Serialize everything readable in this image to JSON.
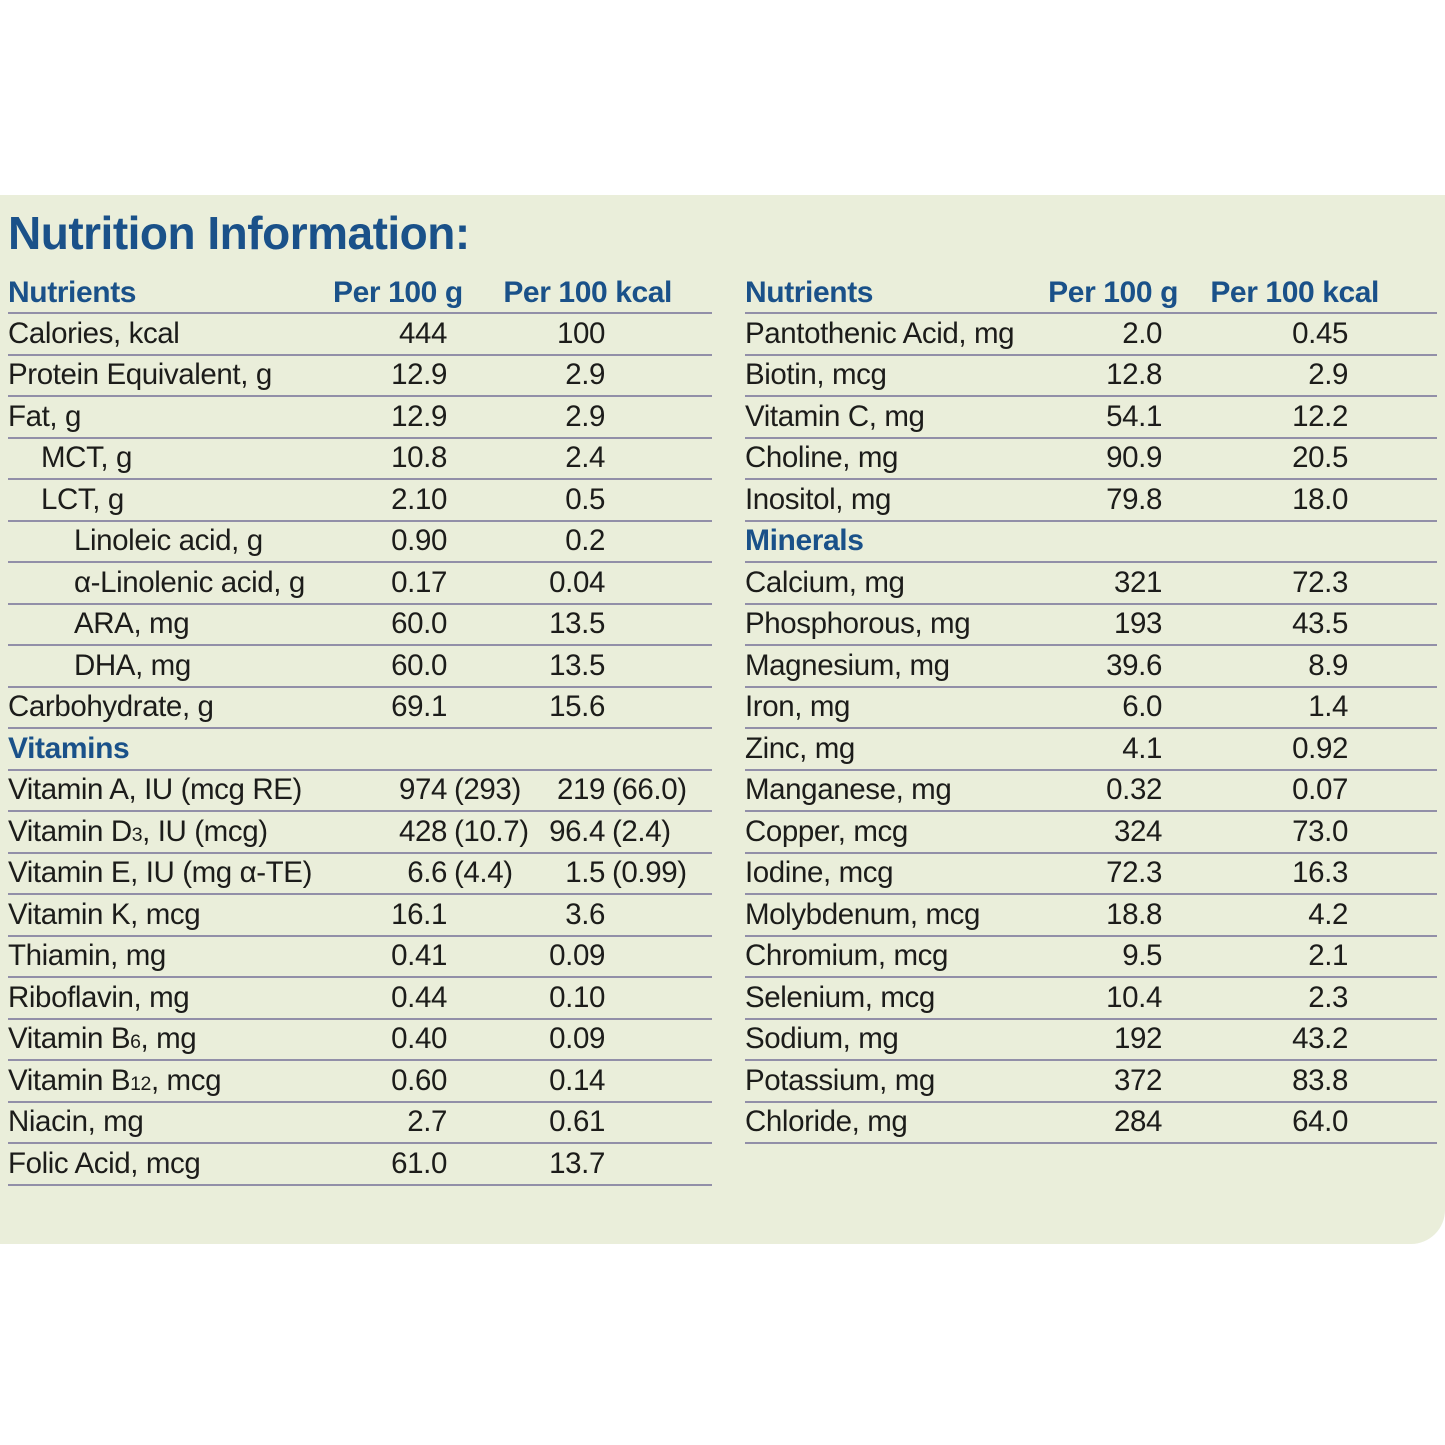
{
  "title": "Nutrition Information:",
  "columns": {
    "nutrients": "Nutrients",
    "per100g": "Per 100 g",
    "per100kcal": "Per 100 kcal"
  },
  "colors": {
    "panel_background": "#eaeeda",
    "heading_blue": "#1a5189",
    "body_text": "#1c1c1a",
    "row_rule": "#928fa8"
  },
  "left_table": {
    "rows": [
      {
        "label": "Calories, kcal",
        "g": "444",
        "kcal": "100"
      },
      {
        "label": "Protein Equivalent, g",
        "g": "12.9",
        "kcal": "2.9"
      },
      {
        "label": "Fat, g",
        "g": "12.9",
        "kcal": "2.9"
      },
      {
        "label": "MCT, g",
        "indent": 1,
        "g": "10.8",
        "kcal": "2.4"
      },
      {
        "label": "LCT, g",
        "indent": 1,
        "g": "2.10",
        "kcal": "0.5"
      },
      {
        "label": "Linoleic acid, g",
        "indent": 2,
        "g": "0.90",
        "kcal": "0.2"
      },
      {
        "label": "α-Linolenic acid, g",
        "indent": 2,
        "g": "0.17",
        "kcal": "0.04"
      },
      {
        "label": "ARA, mg",
        "indent": 2,
        "g": "60.0",
        "kcal": "13.5"
      },
      {
        "label": "DHA, mg",
        "indent": 2,
        "g": "60.0",
        "kcal": "13.5"
      },
      {
        "label": "Carbohydrate, g",
        "g": "69.1",
        "kcal": "15.6"
      },
      {
        "section": "Vitamins"
      },
      {
        "label": "Vitamin A, IU (mcg RE)",
        "g": "974",
        "gp": "(293)",
        "kcal": "219",
        "kcalp": "(66.0)"
      },
      {
        "label": "Vitamin D",
        "sub": "3",
        "label2": ", IU (mcg)",
        "g": "428",
        "gp": "(10.7)",
        "kcal": "96.4",
        "kcalp": "(2.4)"
      },
      {
        "label": "Vitamin E, IU (mg α-TE)",
        "g": "6.6",
        "gp": "(4.4)",
        "kcal": "1.5",
        "kcalp": "(0.99)"
      },
      {
        "label": "Vitamin K, mcg",
        "g": "16.1",
        "kcal": "3.6"
      },
      {
        "label": "Thiamin, mg",
        "g": "0.41",
        "kcal": "0.09"
      },
      {
        "label": "Riboflavin, mg",
        "g": "0.44",
        "kcal": "0.10"
      },
      {
        "label": "Vitamin B",
        "sub": "6",
        "label2": ", mg",
        "g": "0.40",
        "kcal": "0.09"
      },
      {
        "label": "Vitamin B",
        "sub": "12",
        "label2": ", mcg",
        "g": "0.60",
        "kcal": "0.14"
      },
      {
        "label": "Niacin, mg",
        "g": "2.7",
        "kcal": "0.61"
      },
      {
        "label": "Folic Acid, mcg",
        "g": "61.0",
        "kcal": "13.7"
      }
    ]
  },
  "right_table": {
    "rows": [
      {
        "label": "Pantothenic Acid, mg",
        "g": "2.0",
        "kcal": "0.45"
      },
      {
        "label": "Biotin, mcg",
        "g": "12.8",
        "kcal": "2.9"
      },
      {
        "label": "Vitamin C, mg",
        "g": "54.1",
        "kcal": "12.2"
      },
      {
        "label": "Choline, mg",
        "g": "90.9",
        "kcal": "20.5"
      },
      {
        "label": "Inositol, mg",
        "g": "79.8",
        "kcal": "18.0"
      },
      {
        "section": "Minerals"
      },
      {
        "label": "Calcium, mg",
        "g": "321",
        "kcal": "72.3"
      },
      {
        "label": "Phosphorous, mg",
        "g": "193",
        "kcal": "43.5"
      },
      {
        "label": "Magnesium, mg",
        "g": "39.6",
        "kcal": "8.9"
      },
      {
        "label": "Iron, mg",
        "g": "6.0",
        "kcal": "1.4"
      },
      {
        "label": "Zinc, mg",
        "g": "4.1",
        "kcal": "0.92"
      },
      {
        "label": "Manganese, mg",
        "g": "0.32",
        "kcal": "0.07"
      },
      {
        "label": "Copper, mcg",
        "g": "324",
        "kcal": "73.0"
      },
      {
        "label": "Iodine, mcg",
        "g": "72.3",
        "kcal": "16.3"
      },
      {
        "label": "Molybdenum, mcg",
        "g": "18.8",
        "kcal": "4.2"
      },
      {
        "label": "Chromium, mcg",
        "g": "9.5",
        "kcal": "2.1"
      },
      {
        "label": "Selenium, mcg",
        "g": "10.4",
        "kcal": "2.3"
      },
      {
        "label": "Sodium, mg",
        "g": "192",
        "kcal": "43.2"
      },
      {
        "label": "Potassium, mg",
        "g": "372",
        "kcal": "83.8"
      },
      {
        "label": "Chloride, mg",
        "g": "284",
        "kcal": "64.0"
      }
    ]
  }
}
